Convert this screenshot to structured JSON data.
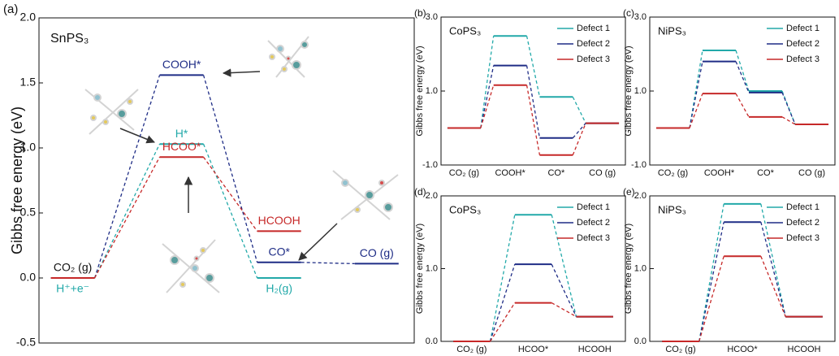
{
  "chart_data": [
    {
      "type": "energy-profile",
      "panel_label": "(a)",
      "title": "SnPS₃",
      "ylabel": "Gibbs free energy (eV)",
      "ylim": [
        -0.5,
        2.0
      ],
      "yticks": [
        -0.5,
        {
          "value": 0,
          "label": "0.0"
        },
        0.5,
        {
          "value": 1,
          "label": "1.0"
        },
        1.5,
        {
          "value": 2,
          "label": "2.0"
        }
      ],
      "series": [
        {
          "color": "#1f2d86",
          "values": [
            0,
            1.56,
            0.12,
            0.11
          ],
          "level_labels": [
            "CO₂ (g)",
            "COOH*",
            "CO*",
            "CO (g)"
          ]
        },
        {
          "color": "#22a9a9",
          "values": [
            0,
            1.03,
            0,
            null
          ],
          "level_labels": [
            "H⁺+e⁻",
            "H*",
            "H₂(g)",
            null
          ]
        },
        {
          "color": "#c62828",
          "values": [
            0,
            0.93,
            0.36,
            null
          ],
          "level_labels": [
            null,
            "HCOO*",
            "HCOOH",
            null
          ]
        }
      ]
    },
    {
      "type": "energy-profile",
      "panel_label": "(b)",
      "title": "CoPS₃",
      "ylabel": "Gibbs free energy (eV)",
      "categories": [
        "CO₂ (g)",
        "COOH*",
        "CO*",
        "CO (g)"
      ],
      "ylim": [
        -1.0,
        3.0
      ],
      "yticks": [
        {
          "value": -1,
          "label": "-1.0"
        },
        {
          "value": 1,
          "label": "1.0"
        },
        {
          "value": 3,
          "label": "3.0"
        }
      ],
      "series": [
        {
          "name": "Defect 1",
          "color": "#22a9a9",
          "values": [
            0,
            2.49,
            0.84,
            0.13
          ]
        },
        {
          "name": "Defect 2",
          "color": "#1f2d86",
          "values": [
            0,
            1.69,
            -0.27,
            0.13
          ]
        },
        {
          "name": "Defect 3",
          "color": "#c62828",
          "values": [
            0,
            1.16,
            -0.73,
            0.13
          ]
        }
      ]
    },
    {
      "type": "energy-profile",
      "panel_label": "(c)",
      "title": "NiPS₃",
      "ylabel": "Gibbs free energy (eV)",
      "categories": [
        "CO₂ (g)",
        "COOH*",
        "CO*",
        "CO (g)"
      ],
      "ylim": [
        -1.0,
        3.0
      ],
      "yticks": [
        {
          "value": -1,
          "label": "-1.0"
        },
        {
          "value": 1,
          "label": "1.0"
        },
        {
          "value": 3,
          "label": "3.0"
        }
      ],
      "series": [
        {
          "name": "Defect 1",
          "color": "#22a9a9",
          "values": [
            0,
            2.1,
            1.0,
            0.1
          ]
        },
        {
          "name": "Defect 2",
          "color": "#1f2d86",
          "values": [
            0,
            1.8,
            0.96,
            0.1
          ]
        },
        {
          "name": "Defect 3",
          "color": "#c62828",
          "values": [
            0,
            0.93,
            0.3,
            0.1
          ]
        }
      ]
    },
    {
      "type": "energy-profile",
      "panel_label": "(d)",
      "title": "CoPS₃",
      "ylabel": "Gibbs free energy (eV)",
      "categories": [
        "CO₂ (g)",
        "HCOO*",
        "HCOOH"
      ],
      "ylim": [
        0,
        2.0
      ],
      "yticks": [
        {
          "value": 0,
          "label": "0.0"
        },
        {
          "value": 1,
          "label": "1.0"
        },
        {
          "value": 2,
          "label": "2.0"
        }
      ],
      "series": [
        {
          "name": "Defect 1",
          "color": "#22a9a9",
          "values": [
            0,
            1.74,
            0.34
          ]
        },
        {
          "name": "Defect 2",
          "color": "#1f2d86",
          "values": [
            0,
            1.06,
            0.34
          ]
        },
        {
          "name": "Defect 3",
          "color": "#c62828",
          "values": [
            0,
            0.53,
            0.34
          ]
        }
      ]
    },
    {
      "type": "energy-profile",
      "panel_label": "(e)",
      "title": "NiPS₃",
      "ylabel": "Gibbs free energy (eV)",
      "categories": [
        "CO₂ (g)",
        "HCOO*",
        "HCOOH"
      ],
      "ylim": [
        0,
        2.0
      ],
      "yticks": [
        {
          "value": 0,
          "label": "0.0"
        },
        {
          "value": 1,
          "label": "1.0"
        },
        {
          "value": 2,
          "label": "2.0"
        }
      ],
      "series": [
        {
          "name": "Defect 1",
          "color": "#22a9a9",
          "values": [
            0,
            1.89,
            0.34
          ]
        },
        {
          "name": "Defect 2",
          "color": "#1f2d86",
          "values": [
            0,
            1.64,
            0.34
          ]
        },
        {
          "name": "Defect 3",
          "color": "#c62828",
          "values": [
            0,
            1.17,
            0.34
          ]
        }
      ]
    }
  ]
}
